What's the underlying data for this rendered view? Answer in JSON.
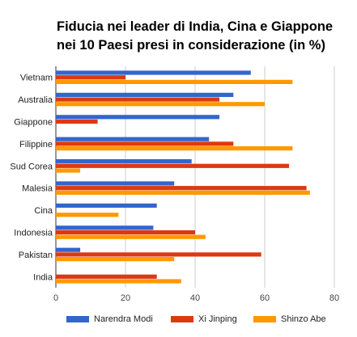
{
  "title_lines": [
    "Fiducia nei leader di India, Cina e Giappone",
    "nei 10 Paesi presi in considerazione (in %)"
  ],
  "chart_data": {
    "type": "bar",
    "orientation": "horizontal",
    "categories": [
      "Vietnam",
      "Australia",
      "Giappone",
      "Filippine",
      "Sud Corea",
      "Malesia",
      "Cina",
      "Indonesia",
      "Pakistan",
      "India"
    ],
    "series": [
      {
        "name": "Narendra Modi",
        "color": "#3366cc",
        "values": [
          56,
          51,
          47,
          44,
          39,
          34,
          29,
          28,
          7,
          0
        ]
      },
      {
        "name": "Xi Jinping",
        "color": "#dc3912",
        "values": [
          20,
          47,
          12,
          51,
          67,
          72,
          0,
          40,
          59,
          29
        ]
      },
      {
        "name": "Shinzo Abe",
        "color": "#ff9900",
        "values": [
          68,
          60,
          0,
          68,
          7,
          73,
          18,
          43,
          34,
          36
        ]
      }
    ],
    "xlim": [
      0,
      80
    ],
    "xticks": [
      "0",
      "20",
      "40",
      "60",
      "80"
    ],
    "grid": true,
    "legend_position": "bottom"
  }
}
